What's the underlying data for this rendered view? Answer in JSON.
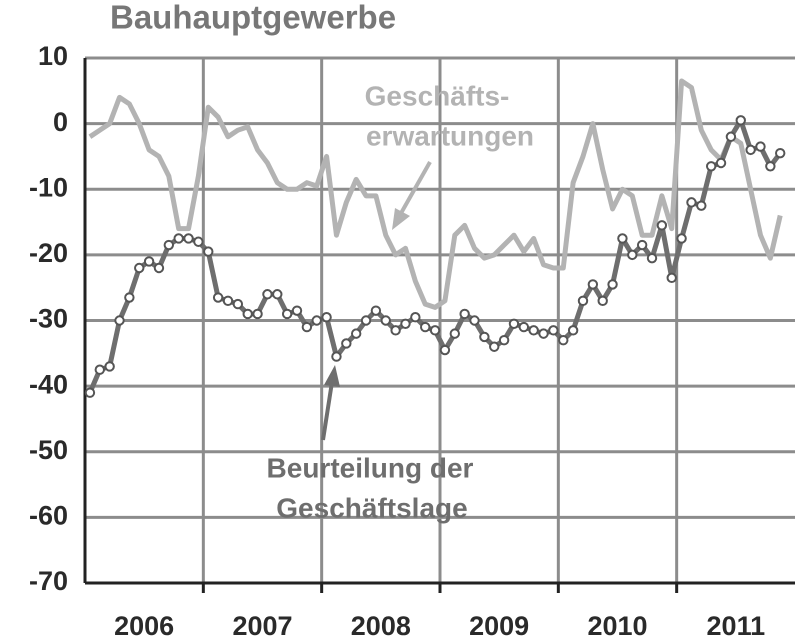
{
  "chart_data": {
    "type": "line",
    "title": "Bauhauptgewerbe",
    "categories": [
      null,
      null,
      null,
      null,
      null,
      null,
      "2006",
      null,
      null,
      null,
      null,
      null,
      null,
      null,
      null,
      null,
      null,
      null,
      "2007",
      null,
      null,
      null,
      null,
      null,
      null,
      null,
      null,
      null,
      null,
      null,
      "2008",
      null,
      null,
      null,
      null,
      null,
      null,
      null,
      null,
      null,
      null,
      null,
      "2009",
      null,
      null,
      null,
      null,
      null,
      null,
      null,
      null,
      null,
      null,
      null,
      "2010",
      null,
      null,
      null,
      null,
      null,
      null,
      null,
      null,
      null,
      null,
      null,
      "2011",
      null,
      null,
      null,
      null,
      null
    ],
    "series": [
      {
        "name": "Geschäftserwartungen",
        "color": "#b3b3b3",
        "markers": false,
        "values": [
          -2,
          -1,
          0,
          4,
          3,
          0,
          -4,
          -5,
          -8,
          -16,
          -16,
          -8,
          2.5,
          1,
          -2,
          -1,
          -0.5,
          -4,
          -6,
          -9,
          -10,
          -10,
          -9,
          -9.5,
          -5,
          -17,
          -12,
          -8.5,
          -11,
          -11,
          -17,
          -20,
          -19,
          -24,
          -27.5,
          -28,
          -27,
          -17,
          -15.5,
          -19,
          -20.5,
          -20,
          -18.5,
          -17,
          -19.5,
          -17.5,
          -21.5,
          -22,
          -22,
          -9,
          -5,
          0,
          -7,
          -13,
          -10,
          -11,
          -17,
          -17,
          -11,
          -16,
          6.5,
          5.5,
          -1,
          -4,
          -5.5,
          -2,
          -3,
          -10,
          -17,
          -20.5,
          -14,
          null
        ]
      },
      {
        "name": "Beurteilung der Geschäftslage",
        "color": "#6e6e6e",
        "markers": true,
        "values": [
          -41,
          -37.5,
          -37,
          -30,
          -26.5,
          -22,
          -21,
          -22,
          -18.5,
          -17.5,
          -17.5,
          -18,
          -19.5,
          -26.5,
          -27,
          -27.5,
          -29,
          -29,
          -26,
          -26,
          -29,
          -28.5,
          -31,
          -30,
          -29.5,
          -35.5,
          -33.5,
          -32,
          -30,
          -28.5,
          -30,
          -31.5,
          -30.5,
          -29.5,
          -31,
          -31.5,
          -34.5,
          -32,
          -29,
          -30,
          -32.5,
          -34,
          -33,
          -30.5,
          -31,
          -31.5,
          -32,
          -31.5,
          -33,
          -31.5,
          -27,
          -24.5,
          -27,
          -24.5,
          -17.5,
          -20,
          -18.5,
          -20.5,
          -15.5,
          -23.5,
          -17.5,
          -12,
          -12.5,
          -6.5,
          -6,
          -2,
          0.5,
          -4,
          -3.5,
          -6.5,
          -4.5,
          null
        ]
      }
    ],
    "annotations": [
      "Geschäfts-",
      "erwartungen",
      "Beurteilung der",
      "Geschäftslage"
    ],
    "ylim": [
      -70,
      10
    ],
    "yticks": [
      -70,
      -60,
      -50,
      -40,
      -30,
      -20,
      -10,
      0,
      10
    ],
    "grid": true
  }
}
